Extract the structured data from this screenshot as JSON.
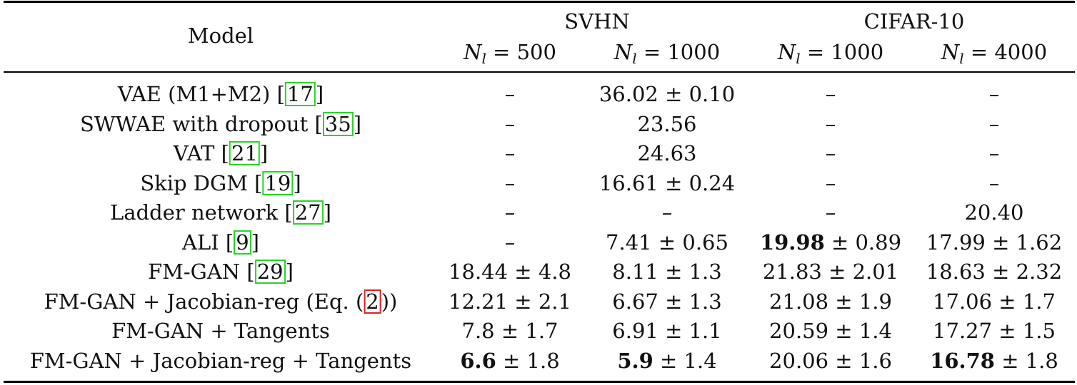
{
  "header": {
    "model": "Model",
    "groups": [
      "SVHN",
      "CIFAR-10"
    ],
    "subcols": [
      {
        "var": "N",
        "sub": "l",
        "eq": " = 500"
      },
      {
        "var": "N",
        "sub": "l",
        "eq": " = 1000"
      },
      {
        "var": "N",
        "sub": "l",
        "eq": " = 1000"
      },
      {
        "var": "N",
        "sub": "l",
        "eq": " = 4000"
      }
    ]
  },
  "rows": [
    {
      "model": "VAE (M1+M2) [",
      "ref": "17",
      "close": "]",
      "cells": [
        {
          "main": "–",
          "rest": ""
        },
        {
          "main": "36.02",
          "rest": " ± 0.10"
        },
        {
          "main": "–",
          "rest": ""
        },
        {
          "main": "–",
          "rest": ""
        }
      ]
    },
    {
      "model": "SWWAE with dropout [",
      "ref": "35",
      "close": "]",
      "cells": [
        {
          "main": "–",
          "rest": ""
        },
        {
          "main": "23.56",
          "rest": ""
        },
        {
          "main": "–",
          "rest": ""
        },
        {
          "main": "–",
          "rest": ""
        }
      ]
    },
    {
      "model": "VAT [",
      "ref": "21",
      "close": "]",
      "cells": [
        {
          "main": "–",
          "rest": ""
        },
        {
          "main": "24.63",
          "rest": ""
        },
        {
          "main": "–",
          "rest": ""
        },
        {
          "main": "–",
          "rest": ""
        }
      ]
    },
    {
      "model": "Skip DGM [",
      "ref": "19",
      "close": "]",
      "cells": [
        {
          "main": "–",
          "rest": ""
        },
        {
          "main": "16.61",
          "rest": " ± 0.24"
        },
        {
          "main": "–",
          "rest": ""
        },
        {
          "main": "–",
          "rest": ""
        }
      ]
    },
    {
      "model": "Ladder network [",
      "ref": "27",
      "close": "]",
      "cells": [
        {
          "main": "–",
          "rest": ""
        },
        {
          "main": "–",
          "rest": ""
        },
        {
          "main": "–",
          "rest": ""
        },
        {
          "main": "20.40",
          "rest": ""
        }
      ]
    },
    {
      "model": "ALI [",
      "ref": "9",
      "close": "]",
      "cells": [
        {
          "main": "–",
          "rest": ""
        },
        {
          "main": "7.41",
          "rest": " ± 0.65"
        },
        {
          "main": "19.98",
          "rest": " ± 0.89",
          "bold": true
        },
        {
          "main": "17.99",
          "rest": " ± 1.62"
        }
      ]
    },
    {
      "model": "FM-GAN [",
      "ref": "29",
      "close": "]",
      "cells": [
        {
          "main": "18.44",
          "rest": " ± 4.8"
        },
        {
          "main": "8.11",
          "rest": " ± 1.3"
        },
        {
          "main": "21.83",
          "rest": " ± 2.01"
        },
        {
          "main": "18.63",
          "rest": " ± 2.32"
        }
      ]
    },
    {
      "model": "FM-GAN + Jacobian-reg (Eq. (",
      "eqref": "2",
      "close": "))",
      "cells": [
        {
          "main": "12.21",
          "rest": " ± 2.1"
        },
        {
          "main": "6.67",
          "rest": " ± 1.3"
        },
        {
          "main": "21.08",
          "rest": " ± 1.9"
        },
        {
          "main": "17.06",
          "rest": " ± 1.7"
        }
      ]
    },
    {
      "model": "FM-GAN + Tangents",
      "close": "",
      "cells": [
        {
          "main": "7.8",
          "rest": " ± 1.7"
        },
        {
          "main": "6.91",
          "rest": " ± 1.1"
        },
        {
          "main": "20.59",
          "rest": " ± 1.4"
        },
        {
          "main": "17.27",
          "rest": " ± 1.5"
        }
      ]
    },
    {
      "model": "FM-GAN + Jacobian-reg + Tangents",
      "close": "",
      "cells": [
        {
          "main": "6.6",
          "rest": " ± 1.8",
          "bold": true
        },
        {
          "main": "5.9",
          "rest": " ± 1.4",
          "bold": true
        },
        {
          "main": "20.06",
          "rest": " ± 1.6"
        },
        {
          "main": "16.78",
          "rest": " ± 1.8",
          "bold": true
        }
      ]
    }
  ]
}
